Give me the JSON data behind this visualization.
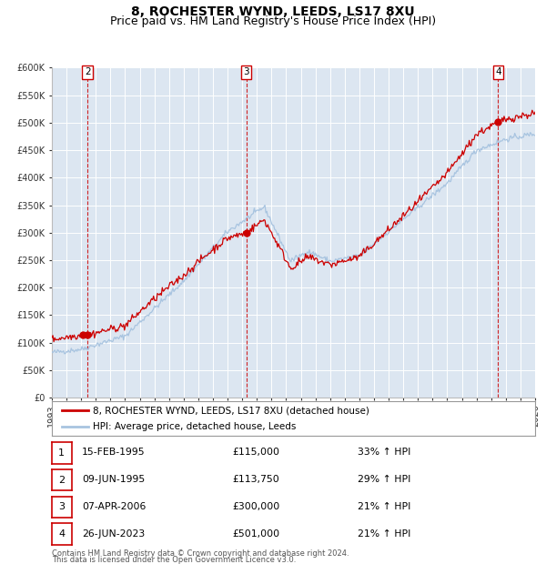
{
  "title": "8, ROCHESTER WYND, LEEDS, LS17 8XU",
  "subtitle": "Price paid vs. HM Land Registry's House Price Index (HPI)",
  "ylim": [
    0,
    600000
  ],
  "yticks": [
    0,
    50000,
    100000,
    150000,
    200000,
    250000,
    300000,
    350000,
    400000,
    450000,
    500000,
    550000,
    600000
  ],
  "background_color": "#dce6f1",
  "grid_color": "#ffffff",
  "hpi_color": "#a8c4e0",
  "price_color": "#cc0000",
  "transactions": [
    {
      "label": "1",
      "date": "15-FEB-1995",
      "x": 1995.12,
      "price": 115000,
      "pct": "33%",
      "dir": "↑"
    },
    {
      "label": "2",
      "date": "09-JUN-1995",
      "x": 1995.44,
      "price": 113750,
      "pct": "29%",
      "dir": "↑"
    },
    {
      "label": "3",
      "date": "07-APR-2006",
      "x": 2006.27,
      "price": 300000,
      "pct": "21%",
      "dir": "↑"
    },
    {
      "label": "4",
      "date": "26-JUN-2023",
      "x": 2023.48,
      "price": 501000,
      "pct": "21%",
      "dir": "↑"
    }
  ],
  "vline_labels": [
    {
      "label": "2",
      "x": 1995.44
    },
    {
      "label": "3",
      "x": 2006.27
    },
    {
      "label": "4",
      "x": 2023.48
    }
  ],
  "legend_line1": "8, ROCHESTER WYND, LEEDS, LS17 8XU (detached house)",
  "legend_line2": "HPI: Average price, detached house, Leeds",
  "footer1": "Contains HM Land Registry data © Crown copyright and database right 2024.",
  "footer2": "This data is licensed under the Open Government Licence v3.0.",
  "title_fontsize": 10,
  "subtitle_fontsize": 9,
  "tick_fontsize": 7
}
